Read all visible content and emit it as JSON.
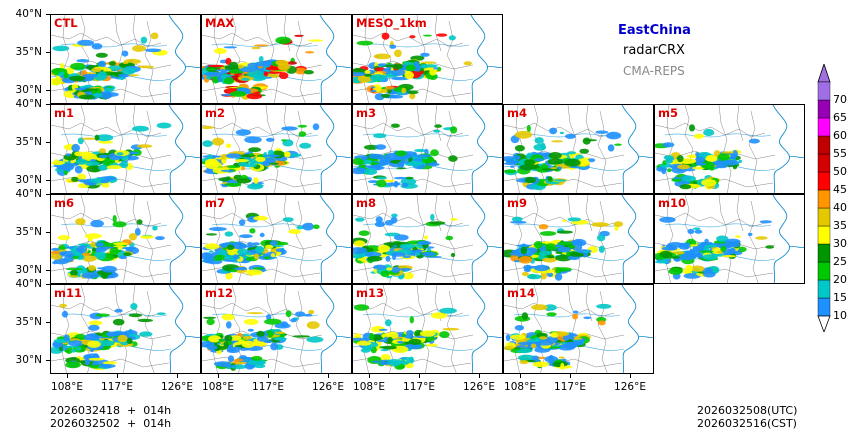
{
  "header": {
    "region": "EastChina",
    "variable": "radarCRX",
    "system": "CMA-REPS",
    "region_color": "#0000cc",
    "system_color": "#888888"
  },
  "panels": [
    {
      "label": "CTL",
      "intensity": 0.7
    },
    {
      "label": "MAX",
      "intensity": 1.0
    },
    {
      "label": "MESO_1km",
      "intensity": 0.8
    },
    {
      "label": "m1",
      "intensity": 0.55
    },
    {
      "label": "m2",
      "intensity": 0.6
    },
    {
      "label": "m3",
      "intensity": 0.35
    },
    {
      "label": "m4",
      "intensity": 0.6
    },
    {
      "label": "m5",
      "intensity": 0.55
    },
    {
      "label": "m6",
      "intensity": 0.6
    },
    {
      "label": "m7",
      "intensity": 0.55
    },
    {
      "label": "m8",
      "intensity": 0.5
    },
    {
      "label": "m9",
      "intensity": 0.6
    },
    {
      "label": "m10",
      "intensity": 0.5
    },
    {
      "label": "m11",
      "intensity": 0.55
    },
    {
      "label": "m12",
      "intensity": 0.6
    },
    {
      "label": "m13",
      "intensity": 0.55
    },
    {
      "label": "m14",
      "intensity": 0.65
    }
  ],
  "lat_labels": [
    "40°N",
    "35°N",
    "30°N"
  ],
  "lon_labels": [
    "108°E",
    "117°E",
    "126°E"
  ],
  "colorbar": {
    "levels": [
      "10",
      "15",
      "20",
      "25",
      "30",
      "35",
      "40",
      "45",
      "50",
      "55",
      "60",
      "65",
      "70"
    ],
    "colors": [
      "#1e90ff",
      "#00c8c8",
      "#00c800",
      "#009600",
      "#ffff00",
      "#e6c800",
      "#ff9600",
      "#ff0000",
      "#d20000",
      "#c00000",
      "#ff00ff",
      "#9600b4",
      "#a06ee6"
    ],
    "under_color": "#ffffff",
    "over_color": "#a070e0"
  },
  "footer": {
    "init_line1": "2026032418  +  014h",
    "init_line2": "2026032502  +  014h",
    "valid_utc": "2026032508(UTC)",
    "valid_cst": "2026032516(CST)"
  }
}
